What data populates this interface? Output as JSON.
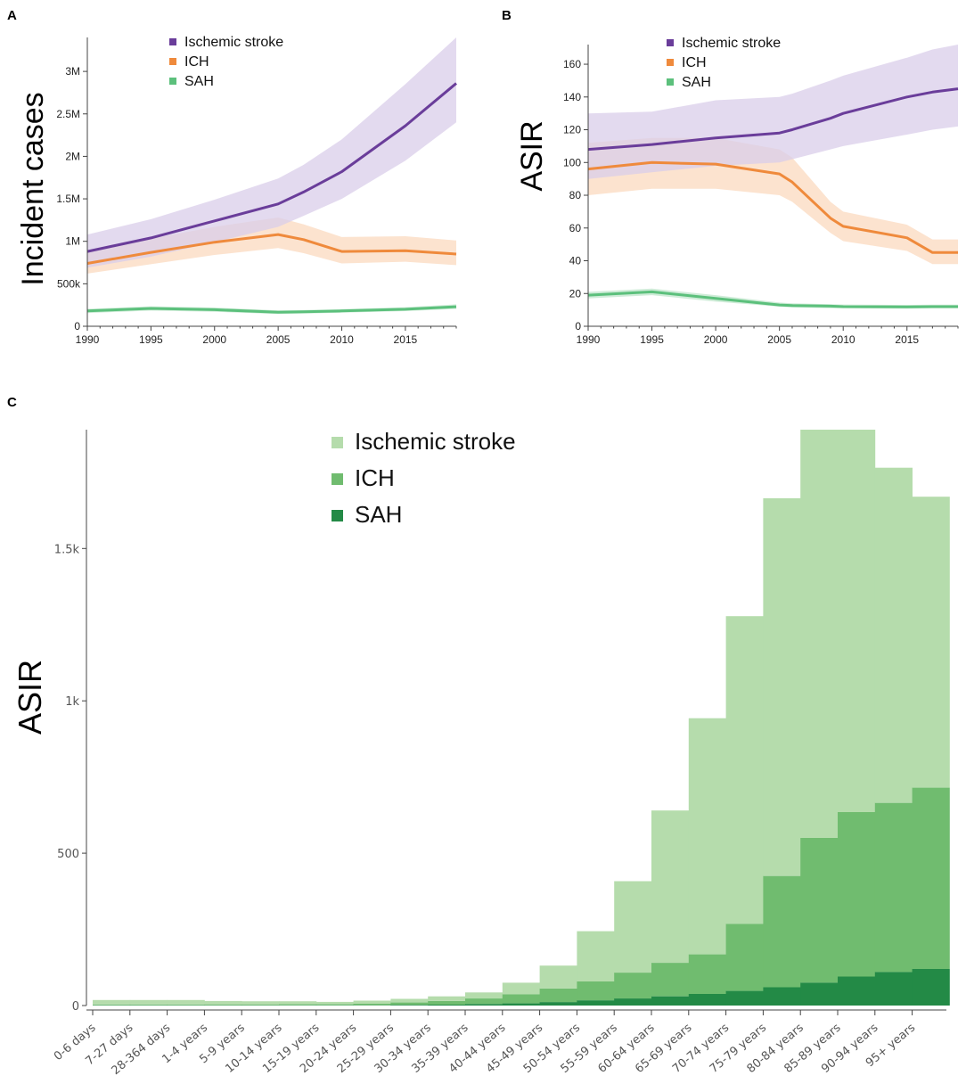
{
  "colors": {
    "ischemic": "#6a3d9a",
    "ischemic_band": "#d9cdea",
    "ich": "#ef8a3c",
    "ich_band": "#fbd9bf",
    "sah": "#5cc07c",
    "sah_band": "#bfe6cb",
    "c_ischemic": "#b5dcac",
    "c_ich": "#70bc6f",
    "c_sah": "#238a46"
  },
  "chart_data": [
    {
      "panel": "A",
      "type": "line",
      "ylabel": "Incident cases",
      "xlim": [
        1990,
        2019
      ],
      "ylim": [
        0,
        3400000
      ],
      "xticks": [
        1990,
        1995,
        2000,
        2005,
        2010,
        2015
      ],
      "yticks": [
        0,
        500000,
        1000000,
        1500000,
        2000000,
        2500000,
        3000000
      ],
      "ytick_labels": [
        "0",
        "500k",
        "1M",
        "1.5M",
        "2M",
        "2.5M",
        "3M"
      ],
      "legend": [
        "Ischemic stroke",
        "ICH",
        "SAH"
      ],
      "x": [
        1990,
        1995,
        2000,
        2005,
        2007,
        2010,
        2015,
        2019
      ],
      "series": [
        {
          "name": "Ischemic stroke",
          "values": [
            880000,
            1040000,
            1240000,
            1440000,
            1580000,
            1820000,
            2360000,
            2860000
          ],
          "lower": [
            690000,
            820000,
            990000,
            1170000,
            1300000,
            1500000,
            1950000,
            2400000
          ],
          "upper": [
            1080000,
            1260000,
            1490000,
            1740000,
            1900000,
            2200000,
            2850000,
            3400000
          ]
        },
        {
          "name": "ICH",
          "values": [
            740000,
            870000,
            990000,
            1080000,
            1020000,
            880000,
            890000,
            850000
          ],
          "lower": [
            620000,
            730000,
            840000,
            920000,
            860000,
            740000,
            760000,
            720000
          ],
          "upper": [
            890000,
            1030000,
            1170000,
            1280000,
            1200000,
            1050000,
            1060000,
            1010000
          ]
        },
        {
          "name": "SAH",
          "values": [
            180000,
            210000,
            195000,
            165000,
            170000,
            180000,
            200000,
            230000
          ],
          "lower": [
            155000,
            185000,
            170000,
            145000,
            150000,
            160000,
            178000,
            205000
          ],
          "upper": [
            205000,
            235000,
            220000,
            188000,
            192000,
            202000,
            225000,
            258000
          ]
        }
      ]
    },
    {
      "panel": "B",
      "type": "line",
      "ylabel": "ASIR",
      "xlim": [
        1990,
        2019
      ],
      "ylim": [
        0,
        172
      ],
      "xticks": [
        1990,
        1995,
        2000,
        2005,
        2010,
        2015
      ],
      "yticks": [
        0,
        20,
        40,
        60,
        80,
        100,
        120,
        140,
        160
      ],
      "ytick_labels": [
        "0",
        "20",
        "40",
        "60",
        "80",
        "100",
        "120",
        "140",
        "160"
      ],
      "legend": [
        "Ischemic stroke",
        "ICH",
        "SAH"
      ],
      "x": [
        1990,
        1995,
        2000,
        2005,
        2006,
        2009,
        2010,
        2015,
        2017,
        2019
      ],
      "series": [
        {
          "name": "Ischemic stroke",
          "values": [
            108,
            111,
            115,
            118,
            120,
            127,
            130,
            140,
            143,
            145
          ],
          "lower": [
            90,
            94,
            98,
            100,
            102,
            108,
            110,
            117,
            120,
            122
          ],
          "upper": [
            130,
            131,
            138,
            140,
            142,
            150,
            153,
            164,
            169,
            172
          ]
        },
        {
          "name": "ICH",
          "values": [
            96,
            100,
            99,
            93,
            88,
            66,
            61,
            54,
            45,
            45
          ],
          "lower": [
            80,
            84,
            84,
            80,
            76,
            57,
            52,
            46,
            38,
            38
          ],
          "upper": [
            112,
            115,
            115,
            108,
            103,
            76,
            70,
            62,
            53,
            53
          ]
        },
        {
          "name": "SAH",
          "values": [
            19,
            21,
            17,
            13,
            12.7,
            12.3,
            12,
            11.8,
            12,
            12
          ],
          "lower": [
            17,
            19,
            15,
            12,
            11.5,
            11,
            11,
            10.8,
            11,
            11
          ],
          "upper": [
            21,
            23,
            19,
            14.5,
            14,
            13.5,
            13.3,
            13,
            13.2,
            13.2
          ]
        }
      ]
    },
    {
      "panel": "C",
      "type": "bar",
      "stacked": true,
      "ylabel": "ASIR",
      "ylim": [
        0,
        1890
      ],
      "yticks": [
        0,
        500,
        1000,
        1500
      ],
      "ytick_labels": [
        "0",
        "500",
        "1k",
        "1.5k"
      ],
      "legend": [
        "Ischemic stroke",
        "ICH",
        "SAH"
      ],
      "categories": [
        "0-6 days",
        "7-27 days",
        "28-364 days",
        "1-4 years",
        "5-9 years",
        "10-14 years",
        "15-19 years",
        "20-24 years",
        "25-29 years",
        "30-34 years",
        "35-39 years",
        "40-44 years",
        "45-49 years",
        "50-54 years",
        "55-59 years",
        "60-64 years",
        "65-69 years",
        "70-74 years",
        "75-79 years",
        "80-84 years",
        "85-89 years",
        "90-94 years",
        "95+ years"
      ],
      "series": [
        {
          "name": "SAH",
          "values": [
            1,
            1,
            1,
            1,
            1,
            1,
            1,
            1,
            2,
            3,
            5,
            7,
            11,
            17,
            23,
            30,
            38,
            48,
            60,
            75,
            95,
            110,
            120
          ]
        },
        {
          "name": "ICH",
          "values": [
            2,
            2,
            2,
            2,
            2,
            3,
            3,
            5,
            8,
            12,
            18,
            30,
            45,
            62,
            85,
            110,
            130,
            220,
            365,
            475,
            540,
            555,
            595
          ]
        },
        {
          "name": "Ischemic stroke",
          "values": [
            15,
            15,
            15,
            12,
            11,
            10,
            8,
            10,
            12,
            15,
            20,
            38,
            75,
            165,
            300,
            500,
            775,
            1010,
            1240,
            1340,
            1255,
            1100,
            955
          ]
        }
      ]
    }
  ]
}
